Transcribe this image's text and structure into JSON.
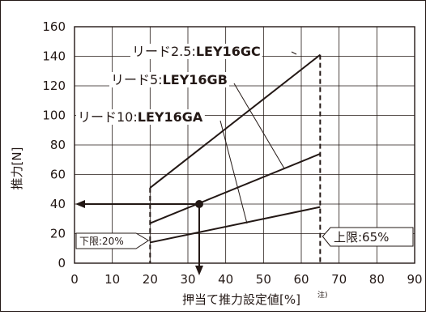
{
  "chart_data": {
    "type": "line",
    "xlabel": "押当て推力設定値[%]",
    "xlabel_note": "注)",
    "ylabel": "推力[N]",
    "xlim": [
      0,
      90
    ],
    "ylim": [
      0,
      160
    ],
    "x_ticks": [
      0,
      10,
      20,
      30,
      40,
      50,
      60,
      70,
      80,
      90
    ],
    "y_ticks": [
      0,
      20,
      40,
      60,
      80,
      100,
      120,
      140,
      160
    ],
    "grid": true,
    "series": [
      {
        "name_prefix": "リード2.5:",
        "name_model": "LEY16GC",
        "x": [
          20,
          65
        ],
        "y": [
          51,
          141
        ]
      },
      {
        "name_prefix": "リード5:",
        "name_model": "LEY16GB",
        "x": [
          20,
          65
        ],
        "y": [
          27,
          74
        ]
      },
      {
        "name_prefix": "リード10:",
        "name_model": "LEY16GA",
        "x": [
          20,
          65
        ],
        "y": [
          14,
          38
        ]
      }
    ],
    "limits": {
      "lower": {
        "x": 20,
        "label": "下限:20%"
      },
      "upper": {
        "x": 65,
        "label": "上限:65%"
      }
    },
    "example": {
      "x": 33,
      "y": 40
    }
  }
}
